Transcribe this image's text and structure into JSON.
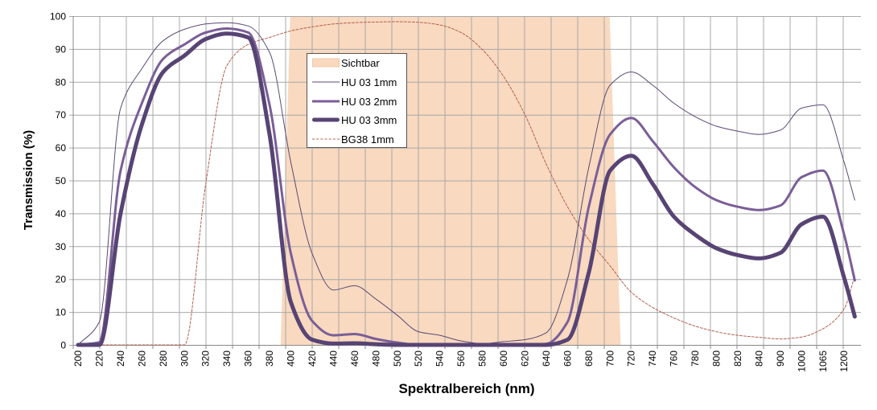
{
  "chart_data": {
    "type": "line",
    "title": "",
    "xlabel": "Spektralbereich (nm)",
    "ylabel": "Transmission (%)",
    "ylim": [
      0,
      100
    ],
    "yticks": [
      "0",
      "10",
      "20",
      "30",
      "40",
      "50",
      "60",
      "70",
      "80",
      "90",
      "100"
    ],
    "grid": true,
    "legend_position": "top-center",
    "categories": [
      "200",
      "220",
      "240",
      "260",
      "280",
      "300",
      "320",
      "340",
      "360",
      "380",
      "400",
      "420",
      "440",
      "460",
      "480",
      "500",
      "520",
      "540",
      "560",
      "580",
      "600",
      "620",
      "640",
      "660",
      "680",
      "700",
      "720",
      "740",
      "760",
      "780",
      "800",
      "820",
      "840",
      "900",
      "1000",
      "1065",
      "1200"
    ],
    "visible_band": {
      "name": "Sichtbar",
      "from": "400",
      "to": "700",
      "value": 100,
      "color": "#f9d9bf"
    },
    "series": [
      {
        "name": "HU 03 1mm",
        "color": "#5b4a74",
        "style": "thin",
        "values": [
          0,
          7,
          72,
          84,
          92.5,
          96,
          97.6,
          98,
          97,
          89,
          55.5,
          27.8,
          16.7,
          18,
          13.9,
          9,
          4,
          2.9,
          1.2,
          0.4,
          1,
          1.6,
          3.7,
          20,
          54,
          79,
          83,
          79,
          73.5,
          69.4,
          66.5,
          65,
          64,
          65.3,
          72,
          73,
          55.5
        ],
        "end_value": 44
      },
      {
        "name": "HU 03 2mm",
        "color": "#7a5e98",
        "style": "medium",
        "values": [
          0,
          0.8,
          53,
          73.5,
          87,
          91.4,
          95,
          96.2,
          95,
          73,
          27.8,
          7.3,
          2.9,
          3.3,
          1.8,
          0.7,
          0,
          0,
          0,
          0,
          0,
          0,
          0.3,
          7,
          42,
          64,
          69,
          62,
          54,
          48,
          44,
          42,
          41,
          42.4,
          51,
          53,
          33.5
        ],
        "end_value": 19.6
      },
      {
        "name": "HU 03 3mm",
        "color": "#574474",
        "style": "thick",
        "values": [
          0,
          0,
          40,
          67,
          83,
          88,
          93,
          94.7,
          93.5,
          64,
          13,
          1.6,
          0.4,
          0.5,
          0.2,
          0,
          0,
          0,
          0,
          0,
          0,
          0,
          0,
          1.6,
          22,
          53,
          57.5,
          49,
          39,
          33.5,
          29.4,
          27.3,
          26.3,
          28,
          36.7,
          39,
          20.4
        ],
        "end_value": 8.6
      },
      {
        "name": "BG38 1mm",
        "color": "#b3604e",
        "style": "dashed",
        "values": [
          0,
          0,
          0,
          0,
          0,
          0,
          49,
          85,
          91.4,
          93.5,
          95.5,
          96.7,
          97.6,
          98,
          98.2,
          98.3,
          98.1,
          97.3,
          95,
          89.8,
          81.6,
          70,
          55,
          42,
          32,
          24,
          16,
          11.4,
          8.2,
          5.7,
          4,
          2.9,
          2.3,
          1.8,
          2.4,
          4.9,
          11
        ],
        "end_value": 21
      }
    ]
  }
}
